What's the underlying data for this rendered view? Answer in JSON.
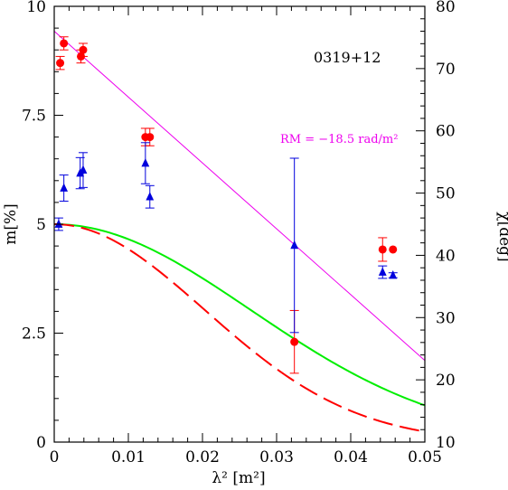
{
  "chart_data": {
    "type": "scatter",
    "xlabel": "λ² [m²]",
    "ylabel_left": "m[%]",
    "ylabel_right": "χ[deg]",
    "xlim": [
      0,
      0.05
    ],
    "ylim_left": [
      0,
      10
    ],
    "ylim_right": [
      10,
      80
    ],
    "x_ticks": [
      0,
      0.01,
      0.02,
      0.03,
      0.04,
      0.05
    ],
    "x_tick_labels": [
      "0",
      "0.01",
      "0.02",
      "0.03",
      "0.04",
      "0.05"
    ],
    "y_left_ticks": [
      0,
      2.5,
      5,
      7.5,
      10
    ],
    "y_left_tick_labels": [
      "0",
      "2.5",
      "5",
      "7.5",
      "10"
    ],
    "y_right_ticks": [
      10,
      20,
      30,
      40,
      50,
      60,
      70,
      80
    ],
    "y_right_tick_labels": [
      "10",
      "20",
      "30",
      "40",
      "50",
      "60",
      "70",
      "80"
    ],
    "annotation": "0319+12",
    "rm_label": "RM = −18.5 rad/m²",
    "colors": {
      "red": "#ff0000",
      "blue": "#0000dd",
      "green": "#00ee00",
      "magenta": "#ee00ee",
      "axis": "#000000"
    },
    "series": [
      {
        "marker": "circle",
        "color": "#ff0000",
        "axis": "left",
        "points": [
          {
            "x": 0.0008,
            "y": 8.7,
            "err": 0.15
          },
          {
            "x": 0.0013,
            "y": 9.15,
            "err": 0.15
          },
          {
            "x": 0.0036,
            "y": 8.85,
            "err": 0.15
          },
          {
            "x": 0.0039,
            "y": 9.0,
            "err": 0.15
          },
          {
            "x": 0.0123,
            "y": 7.0,
            "err": 0.2
          },
          {
            "x": 0.0129,
            "y": 7.0,
            "err": 0.2
          },
          {
            "x": 0.0324,
            "y": 2.3,
            "err": 0.72
          },
          {
            "x": 0.0443,
            "y": 4.42,
            "err": 0.27
          },
          {
            "x": 0.0457,
            "y": 4.42,
            "err": 0.0
          }
        ]
      },
      {
        "marker": "triangle",
        "color": "#0000dd",
        "axis": "right",
        "points": [
          {
            "x": 0.0006,
            "y": 45.0,
            "err": 1.0
          },
          {
            "x": 0.0013,
            "y": 50.8,
            "err": 2.1
          },
          {
            "x": 0.0035,
            "y": 53.2,
            "err": 2.5
          },
          {
            "x": 0.0039,
            "y": 53.7,
            "err": 2.8
          },
          {
            "x": 0.0123,
            "y": 54.8,
            "err": 3.3
          },
          {
            "x": 0.0129,
            "y": 49.4,
            "err": 1.8
          },
          {
            "x": 0.0324,
            "y": 41.6,
            "err": 14.0
          },
          {
            "x": 0.0443,
            "y": 37.3,
            "err": 1.0
          },
          {
            "x": 0.0457,
            "y": 36.8,
            "err": 0.4
          }
        ]
      }
    ],
    "lines": [
      {
        "style": "solid",
        "color": "#00ee00",
        "axis": "left",
        "model": "gaussian",
        "amplitude": 5.0,
        "sigma": 0.0265
      },
      {
        "style": "long-dash",
        "color": "#ff0000",
        "axis": "left",
        "model": "gaussian",
        "amplitude": 5.0,
        "sigma": 0.0203
      },
      {
        "style": "thin",
        "color": "#ee00ee",
        "axis": "right",
        "model": "linear",
        "from": [
          0.0,
          76.0
        ],
        "to": [
          0.05,
          23.1
        ]
      }
    ]
  }
}
